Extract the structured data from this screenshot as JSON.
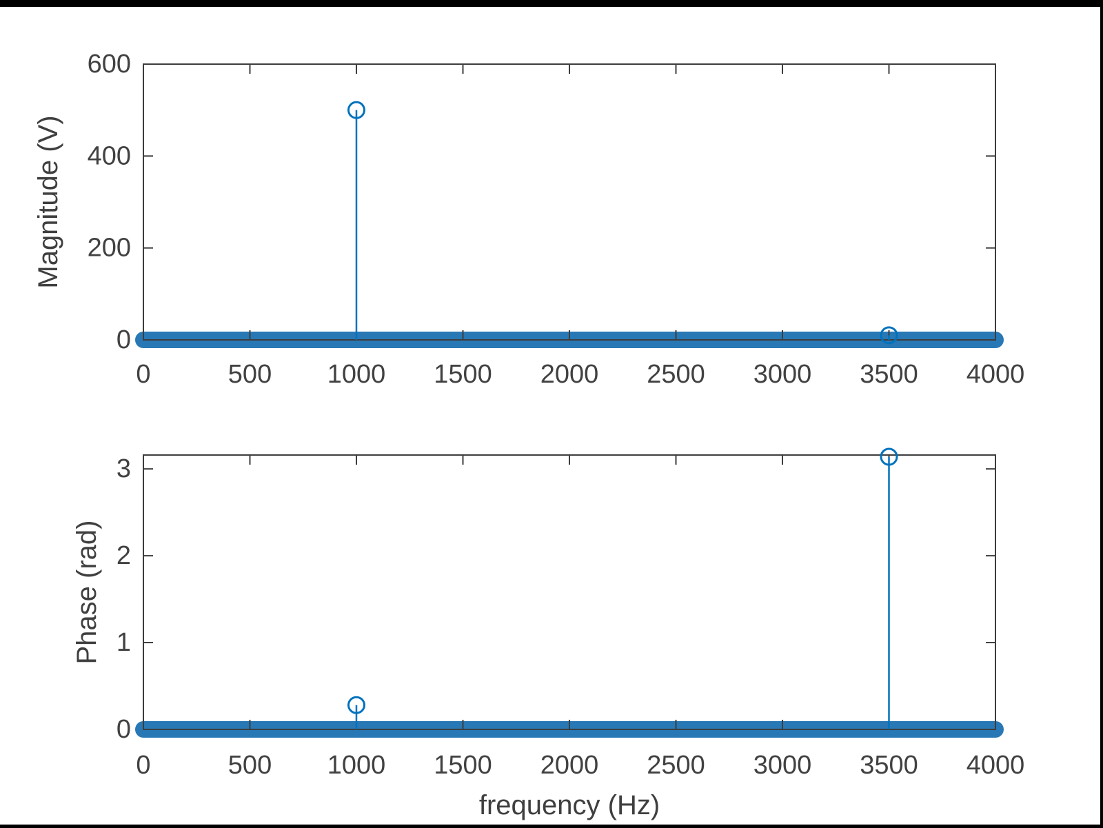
{
  "figure": {
    "background": "#ffffff",
    "description": "MATLAB-style two-panel stem plot of a signal spectrum: magnitude and phase versus frequency"
  },
  "colors": {
    "stem": "#0072BD",
    "baseline_band": "#2878b5",
    "axis": "#3d3d3d",
    "tick_text": "#414141",
    "border": "#000000"
  },
  "chart_data": [
    {
      "type": "stem",
      "title": "",
      "xlabel": "",
      "ylabel": "Magnitude (V)",
      "xlim": [
        0,
        4000
      ],
      "ylim": [
        0,
        600
      ],
      "xticks": [
        0,
        500,
        1000,
        1500,
        2000,
        2500,
        3000,
        3500,
        4000
      ],
      "yticks": [
        0,
        200,
        400,
        600
      ],
      "grid": false,
      "legend": null,
      "marker": "open-circle",
      "stems": [
        {
          "x": 1000,
          "y": 500
        },
        {
          "x": 3500,
          "y": 10
        }
      ],
      "baseline_value": 0,
      "baseline_note": "dense zero-magnitude samples span 0-4000 Hz forming a thick blue band at y=0"
    },
    {
      "type": "stem",
      "title": "",
      "xlabel": "frequency (Hz)",
      "ylabel": "Phase (rad)",
      "xlim": [
        0,
        4000
      ],
      "ylim": [
        0,
        3.16
      ],
      "xticks": [
        0,
        500,
        1000,
        1500,
        2000,
        2500,
        3000,
        3500,
        4000
      ],
      "yticks": [
        0,
        1,
        2,
        3
      ],
      "grid": false,
      "legend": null,
      "marker": "open-circle",
      "stems": [
        {
          "x": 1000,
          "y": 0.28
        },
        {
          "x": 3500,
          "y": 3.14
        }
      ],
      "baseline_value": 0,
      "baseline_note": "dense zero-phase samples span 0-4000 Hz forming a thick blue band at y=0"
    }
  ]
}
